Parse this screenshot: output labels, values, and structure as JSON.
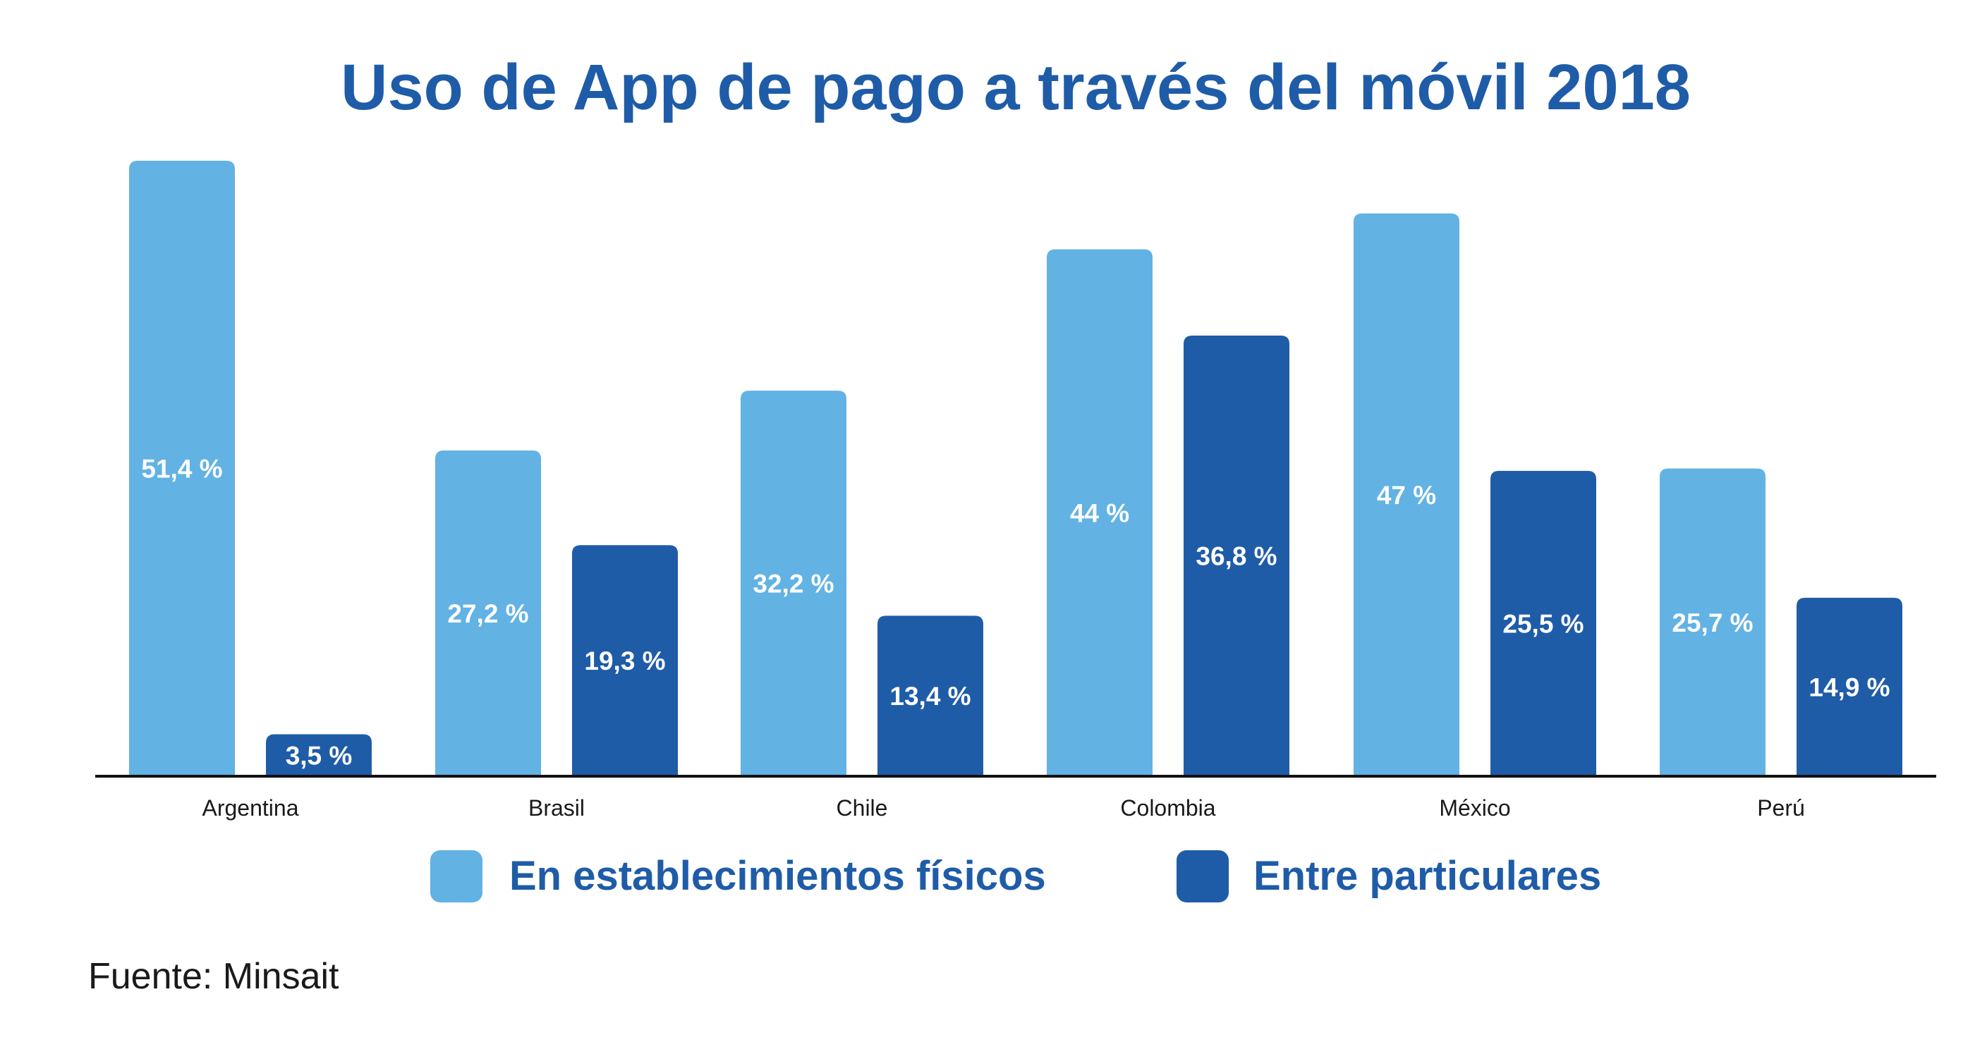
{
  "colors": {
    "title": "#1f5ca8",
    "series_light": "#62b2e4",
    "series_dark": "#1f5ca8",
    "axis": "#111111",
    "bar_label": "#ffffff"
  },
  "source": "Fuente: Minsait",
  "chart_data": {
    "type": "bar",
    "title": "Uso de App de pago a través del móvil 2018",
    "xlabel": "",
    "ylabel": "",
    "ylim": [
      0,
      55
    ],
    "grid": false,
    "legend_position": "bottom",
    "categories": [
      "Argentina",
      "Brasil",
      "Chile",
      "Colombia",
      "México",
      "Perú"
    ],
    "series": [
      {
        "name": "En establecimientos físicos",
        "values": [
          51.4,
          27.2,
          32.2,
          44,
          47,
          25.7
        ],
        "labels": [
          "51,4 %",
          "27,2 %",
          "32,2 %",
          "44 %",
          "47 %",
          "25,7 %"
        ],
        "color": "#62b2e4"
      },
      {
        "name": "Entre particulares",
        "values": [
          3.5,
          19.3,
          13.4,
          36.8,
          25.5,
          14.9
        ],
        "labels": [
          "3,5 %",
          "19,3 %",
          "13,4 %",
          "36,8 %",
          "25,5 %",
          "14,9 %"
        ],
        "color": "#1f5ca8"
      }
    ]
  }
}
